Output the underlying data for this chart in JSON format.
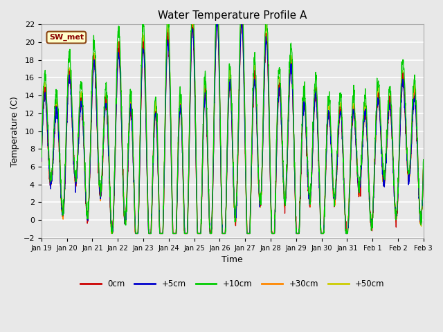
{
  "title": "Water Temperature Profile A",
  "xlabel": "Time",
  "ylabel": "Temperature (C)",
  "ylim": [
    -2,
    22
  ],
  "yticks": [
    -2,
    0,
    2,
    4,
    6,
    8,
    10,
    12,
    14,
    16,
    18,
    20,
    22
  ],
  "xtick_labels": [
    "Jan 19",
    "Jan 20",
    "Jan 21",
    "Jan 22",
    "Jan 23",
    "Jan 24",
    "Jan 25",
    "Jan 26",
    "Jan 27",
    "Jan 28",
    "Jan 29",
    "Jan 30",
    "Jan 31",
    "Feb 1",
    "Feb 2",
    "Feb 3"
  ],
  "series_colors": {
    "0cm": "#cc0000",
    "+5cm": "#0000cc",
    "+10cm": "#00cc00",
    "+30cm": "#ff8800",
    "+50cm": "#cccc00"
  },
  "lw": 0.9,
  "annotation_text": "SW_met",
  "bg_color": "#e8e8e8",
  "grid_color": "#ffffff",
  "legend_colors": [
    "#cc0000",
    "#0000cc",
    "#00cc00",
    "#ff8800",
    "#cccc00"
  ],
  "legend_labels": [
    "0cm",
    "+5cm",
    "+10cm",
    "+30cm",
    "+50cm"
  ],
  "figsize": [
    6.4,
    4.8
  ],
  "dpi": 100
}
